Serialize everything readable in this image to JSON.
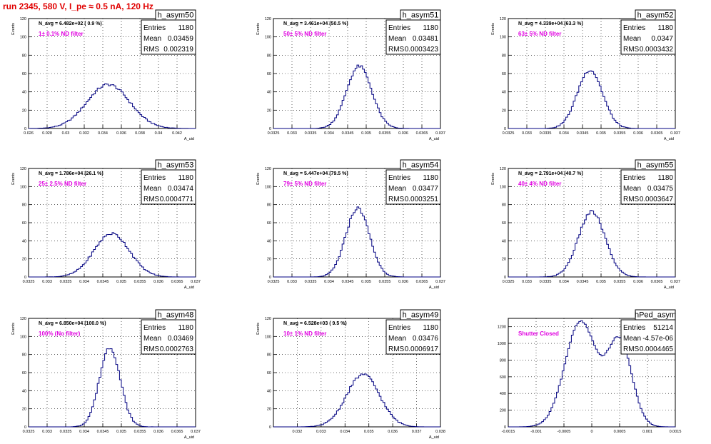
{
  "page": {
    "title": "run 2345,   580 V, I_pe ≈ 0.5 nA, 120 Hz",
    "title_color": "#e00000",
    "histogram_color": "#000080",
    "annotation_color": "#e000e0"
  },
  "chart_data": [
    {
      "type": "histogram",
      "name": "h_asym50",
      "stats": {
        "entries_label": "Entries",
        "entries": "1180",
        "mean_label": "Mean",
        "mean": "0.03459",
        "rms_label": "RMS",
        "rms": "0.002319"
      },
      "navg": "N_avg = 6.482e+02 ( 0.9 %)",
      "filter": "1± 0.1% ND filter",
      "xlabel": "A_uid",
      "ylabel": "Events",
      "xlim": [
        0.026,
        0.044
      ],
      "ylim": [
        0,
        120
      ],
      "xticks": [
        0.026,
        0.028,
        0.03,
        0.032,
        0.034,
        0.036,
        0.038,
        0.04,
        0.042
      ],
      "xtick_labels": [
        "0.026",
        "0.028",
        "0.03",
        "0.032",
        "0.034",
        "0.036",
        "0.038",
        "0.04",
        "0.042"
      ],
      "yticks": [
        0,
        20,
        40,
        60,
        80,
        100,
        120
      ],
      "ytick_labels": [
        "0",
        "20",
        "40",
        "60",
        "80",
        "100",
        "120"
      ],
      "shape": {
        "mu": 0.0346,
        "sigma": 0.0023,
        "peak": 48
      }
    },
    {
      "type": "histogram",
      "name": "h_asym51",
      "stats": {
        "entries_label": "Entries",
        "entries": "1180",
        "mean_label": "Mean",
        "mean": "0.03481",
        "rms_label": "RMS",
        "rms": "0.0003423"
      },
      "navg": "N_avg = 3.461e+04 (50.5 %)",
      "filter": "50± 5% ND filter",
      "xlabel": "A_uid",
      "ylabel": "Events",
      "xlim": [
        0.0325,
        0.037
      ],
      "ylim": [
        0,
        120
      ],
      "xticks": [
        0.0325,
        0.033,
        0.0335,
        0.034,
        0.0345,
        0.035,
        0.0355,
        0.036,
        0.0365,
        0.037
      ],
      "xtick_labels": [
        "0.0325",
        "0.033",
        "0.0335",
        "0.034",
        "0.0345",
        "0.035",
        "0.0355",
        "0.036",
        "0.0365",
        "0.037"
      ],
      "yticks": [
        0,
        20,
        40,
        60,
        80,
        100,
        120
      ],
      "ytick_labels": [
        "0",
        "20",
        "40",
        "60",
        "80",
        "100",
        "120"
      ],
      "shape": {
        "mu": 0.03481,
        "sigma": 0.00034,
        "peak": 68
      }
    },
    {
      "type": "histogram",
      "name": "h_asym52",
      "stats": {
        "entries_label": "Entries",
        "entries": "1180",
        "mean_label": "Mean",
        "mean": "0.0347",
        "rms_label": "RMS",
        "rms": "0.0003432"
      },
      "navg": "N_avg = 4.339e+04 (63.3 %)",
      "filter": "63± 5% ND filter",
      "xlabel": "A_uid",
      "ylabel": "Events",
      "xlim": [
        0.0325,
        0.037
      ],
      "ylim": [
        0,
        120
      ],
      "xticks": [
        0.0325,
        0.033,
        0.0335,
        0.034,
        0.0345,
        0.035,
        0.0355,
        0.036,
        0.0365,
        0.037
      ],
      "xtick_labels": [
        "0.0325",
        "0.033",
        "0.0335",
        "0.034",
        "0.0345",
        "0.035",
        "0.0355",
        "0.036",
        "0.0365",
        "0.037"
      ],
      "yticks": [
        0,
        20,
        40,
        60,
        80,
        100,
        120
      ],
      "ytick_labels": [
        "0",
        "20",
        "40",
        "60",
        "80",
        "100",
        "120"
      ],
      "shape": {
        "mu": 0.0347,
        "sigma": 0.00034,
        "peak": 64
      }
    },
    {
      "type": "histogram",
      "name": "h_asym53",
      "stats": {
        "entries_label": "Entries",
        "entries": "1180",
        "mean_label": "Mean",
        "mean": "0.03474",
        "rms_label": "RMS",
        "rms": "0.0004771"
      },
      "navg": "N_avg = 1.786e+04 (26.1 %)",
      "filter": "25± 2.5% ND filter",
      "xlabel": "A_uid",
      "ylabel": "Events",
      "xlim": [
        0.0325,
        0.037
      ],
      "ylim": [
        0,
        120
      ],
      "xticks": [
        0.0325,
        0.033,
        0.0335,
        0.034,
        0.0345,
        0.035,
        0.0355,
        0.036,
        0.0365,
        0.037
      ],
      "xtick_labels": [
        "0.0325",
        "0.033",
        "0.0335",
        "0.034",
        "0.0345",
        "0.035",
        "0.0355",
        "0.036",
        "0.0365",
        "0.037"
      ],
      "yticks": [
        0,
        20,
        40,
        60,
        80,
        100,
        120
      ],
      "ytick_labels": [
        "0",
        "20",
        "40",
        "60",
        "80",
        "100",
        "120"
      ],
      "shape": {
        "mu": 0.03474,
        "sigma": 0.00048,
        "peak": 48
      }
    },
    {
      "type": "histogram",
      "name": "h_asym54",
      "stats": {
        "entries_label": "Entries",
        "entries": "1180",
        "mean_label": "Mean",
        "mean": "0.03477",
        "rms_label": "RMS",
        "rms": "0.0003251"
      },
      "navg": "N_avg = 5.447e+04 (79.5 %)",
      "filter": "79± 5% ND filter",
      "xlabel": "A_uid",
      "ylabel": "Events",
      "xlim": [
        0.0325,
        0.037
      ],
      "ylim": [
        0,
        120
      ],
      "xticks": [
        0.0325,
        0.033,
        0.0335,
        0.034,
        0.0345,
        0.035,
        0.0355,
        0.036,
        0.0365,
        0.037
      ],
      "xtick_labels": [
        "0.0325",
        "0.033",
        "0.0335",
        "0.034",
        "0.0345",
        "0.035",
        "0.0355",
        "0.036",
        "0.0365",
        "0.037"
      ],
      "yticks": [
        0,
        20,
        40,
        60,
        80,
        100,
        120
      ],
      "ytick_labels": [
        "0",
        "20",
        "40",
        "60",
        "80",
        "100",
        "120"
      ],
      "shape": {
        "mu": 0.03477,
        "sigma": 0.00032,
        "peak": 76
      }
    },
    {
      "type": "histogram",
      "name": "h_asym55",
      "stats": {
        "entries_label": "Entries",
        "entries": "1180",
        "mean_label": "Mean",
        "mean": "0.03475",
        "rms_label": "RMS",
        "rms": "0.0003647"
      },
      "navg": "N_avg = 2.791e+04 (40.7 %)",
      "filter": "40± 4% ND filter",
      "xlabel": "A_uid",
      "ylabel": "Events",
      "xlim": [
        0.0325,
        0.037
      ],
      "ylim": [
        0,
        120
      ],
      "xticks": [
        0.0325,
        0.033,
        0.0335,
        0.034,
        0.0345,
        0.035,
        0.0355,
        0.036,
        0.0365,
        0.037
      ],
      "xtick_labels": [
        "0.0325",
        "0.033",
        "0.0335",
        "0.034",
        "0.0345",
        "0.035",
        "0.0355",
        "0.036",
        "0.0365",
        "0.037"
      ],
      "yticks": [
        0,
        20,
        40,
        60,
        80,
        100,
        120
      ],
      "ytick_labels": [
        "0",
        "20",
        "40",
        "60",
        "80",
        "100",
        "120"
      ],
      "shape": {
        "mu": 0.03475,
        "sigma": 0.00036,
        "peak": 72
      }
    },
    {
      "type": "histogram",
      "name": "h_asym48",
      "stats": {
        "entries_label": "Entries",
        "entries": "1180",
        "mean_label": "Mean",
        "mean": "0.03469",
        "rms_label": "RMS",
        "rms": "0.0002763"
      },
      "navg": "N_avg = 6.850e+04 (100.0 %)",
      "filter": "100% (No filter)",
      "xlabel": "A_uid",
      "ylabel": "Events",
      "xlim": [
        0.0325,
        0.037
      ],
      "ylim": [
        0,
        120
      ],
      "xticks": [
        0.0325,
        0.033,
        0.0335,
        0.034,
        0.0345,
        0.035,
        0.0355,
        0.036,
        0.0365,
        0.037
      ],
      "xtick_labels": [
        "0.0325",
        "0.033",
        "0.0335",
        "0.034",
        "0.0345",
        "0.035",
        "0.0355",
        "0.036",
        "0.0365",
        "0.037"
      ],
      "yticks": [
        0,
        20,
        40,
        60,
        80,
        100,
        120
      ],
      "ytick_labels": [
        "0",
        "20",
        "40",
        "60",
        "80",
        "100",
        "120"
      ],
      "shape": {
        "mu": 0.03469,
        "sigma": 0.00028,
        "peak": 88
      }
    },
    {
      "type": "histogram",
      "name": "h_asym49",
      "stats": {
        "entries_label": "Entries",
        "entries": "1180",
        "mean_label": "Mean",
        "mean": "0.03476",
        "rms_label": "RMS",
        "rms": "0.0006917"
      },
      "navg": "N_avg = 6.528e+03 ( 9.5 %)",
      "filter": "10± 1% ND filter",
      "xlabel": "A_uid",
      "ylabel": "Events",
      "xlim": [
        0.031,
        0.038
      ],
      "ylim": [
        0,
        120
      ],
      "xticks": [
        0.032,
        0.033,
        0.034,
        0.035,
        0.036,
        0.037,
        0.038
      ],
      "xtick_labels": [
        "0.032",
        "0.033",
        "0.034",
        "0.035",
        "0.036",
        "0.037",
        "0.038"
      ],
      "yticks": [
        0,
        20,
        40,
        60,
        80,
        100,
        120
      ],
      "ytick_labels": [
        "0",
        "20",
        "40",
        "60",
        "80",
        "100",
        "120"
      ],
      "shape": {
        "mu": 0.03476,
        "sigma": 0.00069,
        "peak": 58
      }
    },
    {
      "type": "histogram",
      "name": "hPed_asym",
      "stats": {
        "entries_label": "Entries",
        "entries": "51214",
        "mean_label": "Mean",
        "mean": "-4.57e-06",
        "rms_label": "RMS",
        "rms": "0.0004465"
      },
      "navg": "",
      "filter": "Shutter Closed",
      "xlabel": "",
      "ylabel": "",
      "xlim": [
        -0.0015,
        0.0015
      ],
      "ylim": [
        0,
        1300
      ],
      "xticks": [
        -0.0015,
        -0.001,
        -0.0005,
        0,
        0.0005,
        0.001,
        0.0015
      ],
      "xtick_labels": [
        "-0.0015",
        "-0.001",
        "-0.0005",
        "0",
        "0.0005",
        "0.001",
        "0.0015"
      ],
      "yticks": [
        0,
        200,
        400,
        600,
        800,
        1000,
        1200
      ],
      "ytick_labels": [
        "0",
        "200",
        "400",
        "600",
        "800",
        "1000",
        "1200"
      ],
      "shape": {
        "bimodal": true,
        "mu1": -0.0002,
        "mu2": 0.0005,
        "sigma1": 0.00028,
        "sigma2": 0.00022,
        "peak1": 1260,
        "peak2": 1020
      }
    }
  ]
}
